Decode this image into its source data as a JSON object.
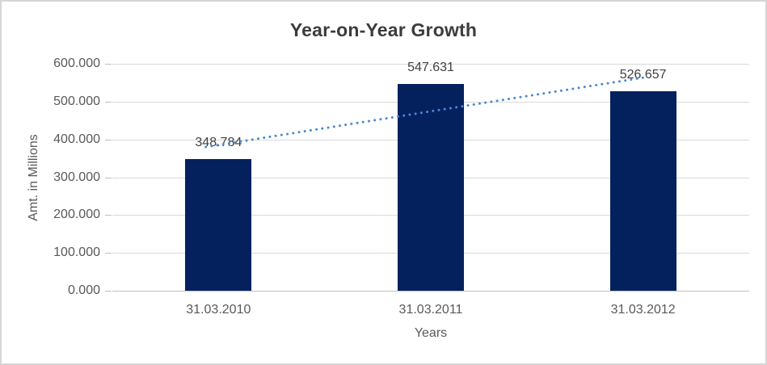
{
  "chart_data": {
    "type": "bar",
    "title": "Year-on-Year Growth",
    "xlabel": "Years",
    "ylabel": "Amt. in Millions",
    "categories": [
      "31.03.2010",
      "31.03.2011",
      "31.03.2012"
    ],
    "values": [
      348.784,
      547.631,
      526.657
    ],
    "value_labels": [
      "348.784",
      "547.631",
      "526.657"
    ],
    "yticks": [
      "600.000",
      "500.000",
      "400.000",
      "300.000",
      "200.000",
      "100.000",
      "0.000"
    ],
    "ylim": [
      0,
      600
    ],
    "ytick_step": 100,
    "grid": true,
    "legend": "none",
    "bar_color": "#04215E",
    "gridline_color": "#D9D9D9",
    "axis_color": "#BFBFBF",
    "label_color": "#404040",
    "tick_color": "#595959",
    "title_color": "#3C3C3C",
    "trendline": {
      "type": "linear",
      "style": "dotted",
      "color": "#4A89CE",
      "slope": 88.9365,
      "intercept": 296.4843,
      "x_start": 0.94,
      "x_end": 3.0
    }
  }
}
